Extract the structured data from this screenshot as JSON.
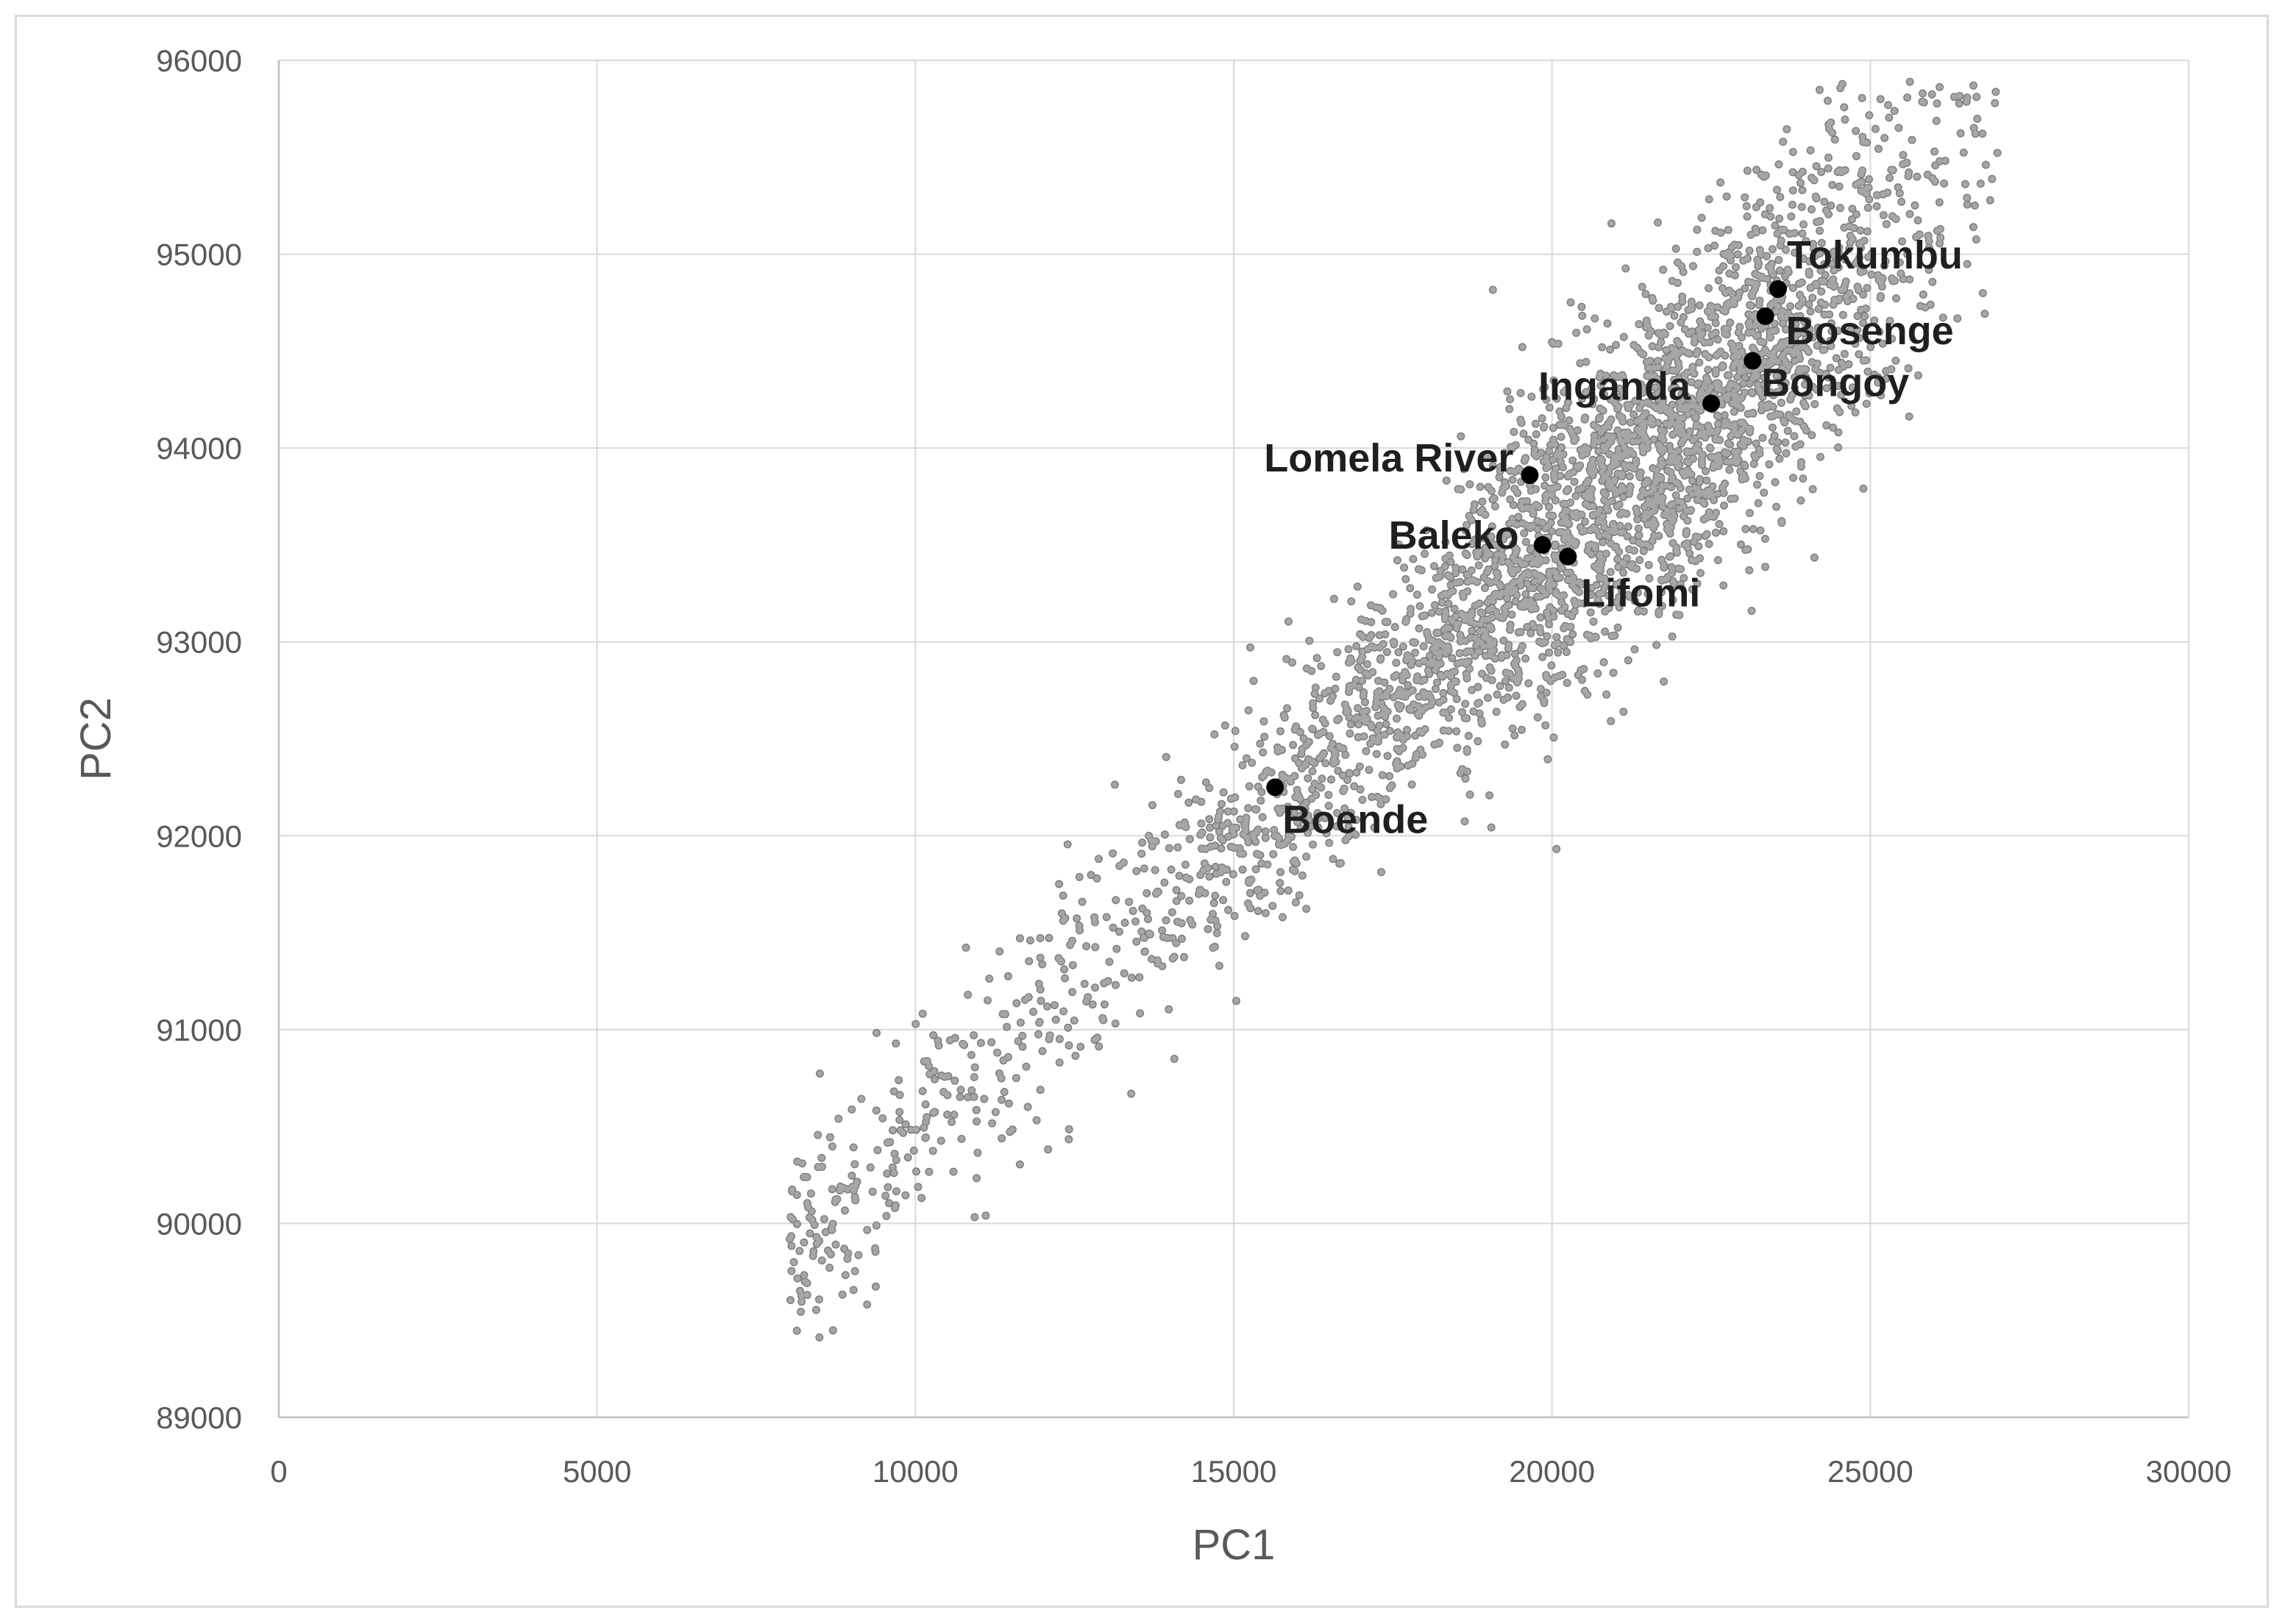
{
  "chart_data": {
    "type": "scatter",
    "xlabel": "PC1",
    "ylabel": "PC2",
    "xlim": [
      0,
      30000
    ],
    "ylim": [
      89000,
      96000
    ],
    "x_ticks": [
      0,
      5000,
      10000,
      15000,
      20000,
      25000,
      30000
    ],
    "y_ticks": [
      89000,
      90000,
      91000,
      92000,
      93000,
      94000,
      95000,
      96000
    ],
    "x_tick_labels": [
      "0",
      "5000",
      "10000",
      "15000",
      "20000",
      "25000",
      "30000"
    ],
    "y_tick_labels": [
      "89000",
      "90000",
      "91000",
      "92000",
      "93000",
      "94000",
      "95000",
      "96000"
    ],
    "grid": true,
    "legend": "none",
    "background_cloud": {
      "description_color": "#a6a6a6",
      "edge_color": "#7f7f7f",
      "approx_point_count": 10000,
      "trend": {
        "x_start": 6600,
        "y_start": 89450,
        "x_end": 27000,
        "y_end": 95600
      }
    },
    "series": [
      {
        "points": [
          {
            "label": "Tokumbu",
            "x": 23550,
            "y": 94820
          },
          {
            "label": "Bosenge",
            "x": 23350,
            "y": 94680
          },
          {
            "label": "Bongoy",
            "x": 23150,
            "y": 94450
          },
          {
            "label": "Inganda",
            "x": 22500,
            "y": 94230
          },
          {
            "label": "Lomela River",
            "x": 19650,
            "y": 93860
          },
          {
            "label": "Baleko",
            "x": 19850,
            "y": 93500
          },
          {
            "label": "Lifomi",
            "x": 20250,
            "y": 93440
          },
          {
            "label": "Boende",
            "x": 15650,
            "y": 92250
          }
        ],
        "color": "#000000"
      }
    ]
  }
}
